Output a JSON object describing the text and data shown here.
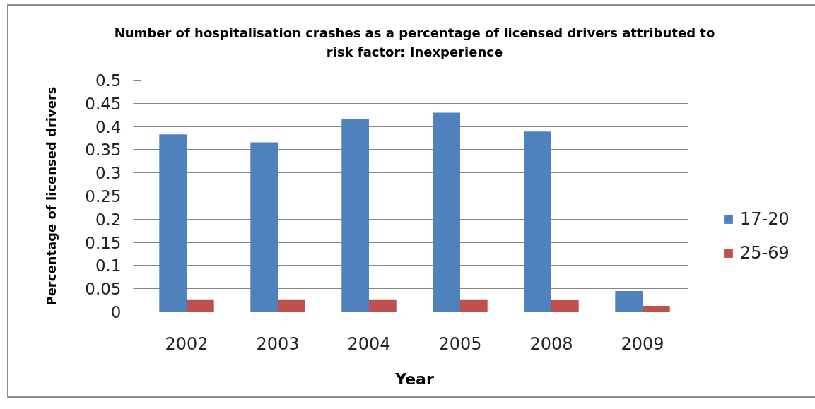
{
  "chart_data": {
    "type": "bar",
    "title": "Number of hospitalisation crashes as a percentage of licensed drivers attributed to risk factor: Inexperience",
    "xlabel": "Year",
    "ylabel": "Percentage of licensed drivers",
    "categories": [
      "2002",
      "2003",
      "2004",
      "2005",
      "2008",
      "2009"
    ],
    "series": [
      {
        "name": "17-20",
        "color": "#4f81bd",
        "values": [
          0.383,
          0.366,
          0.417,
          0.43,
          0.389,
          0.045
        ]
      },
      {
        "name": "25-69",
        "color": "#c0504d",
        "values": [
          0.027,
          0.027,
          0.027,
          0.027,
          0.026,
          0.013
        ]
      }
    ],
    "ylim": [
      0,
      0.5
    ],
    "yticks": [
      0,
      0.05,
      0.1,
      0.15,
      0.2,
      0.25,
      0.3,
      0.35,
      0.4,
      0.45,
      0.5
    ],
    "grid": "y",
    "legend": "right"
  }
}
